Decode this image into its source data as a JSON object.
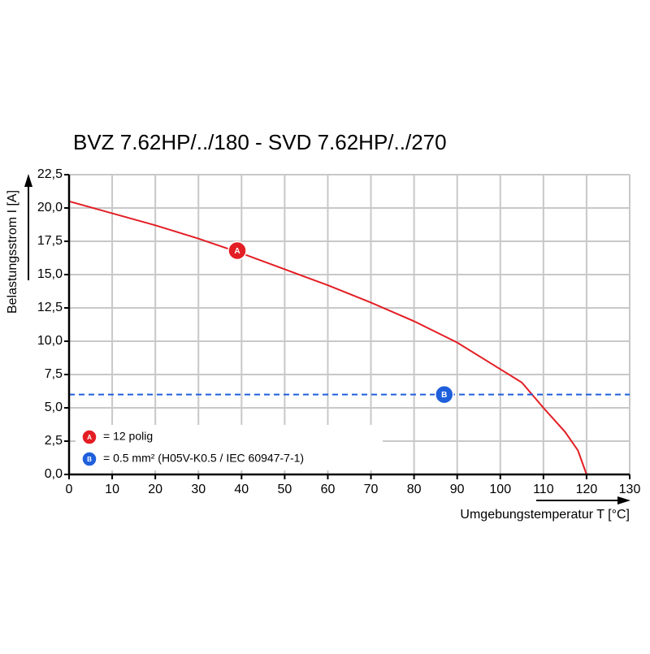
{
  "chart_data": {
    "type": "line",
    "title": "BVZ 7.62HP/../180 - SVD 7.62HP/../270",
    "x_label": "Umgebungstemperatur T [°C]",
    "y_label": "Belastungsstrom I [A]",
    "xlim": [
      0,
      130
    ],
    "ylim": [
      0,
      22.5
    ],
    "xticks": [
      0,
      10,
      20,
      30,
      40,
      50,
      60,
      70,
      80,
      90,
      100,
      110,
      120,
      130
    ],
    "yticks": [
      {
        "value": 0,
        "label": "0,0"
      },
      {
        "value": 2.5,
        "label": "2,5"
      },
      {
        "value": 5,
        "label": "5,0"
      },
      {
        "value": 7.5,
        "label": "7,5"
      },
      {
        "value": 10,
        "label": "10,0"
      },
      {
        "value": 12.5,
        "label": "12,5"
      },
      {
        "value": 15,
        "label": "15,0"
      },
      {
        "value": 17.5,
        "label": "17,5"
      },
      {
        "value": 20,
        "label": "20,0"
      },
      {
        "value": 22.5,
        "label": "22,5"
      }
    ],
    "grid": true,
    "series": [
      {
        "name": "= 12 polig",
        "marker_label": "A",
        "color": "#e31e24",
        "dashed": false,
        "x": [
          0,
          10,
          20,
          30,
          40,
          50,
          60,
          70,
          80,
          90,
          100,
          105,
          110,
          115,
          118,
          120
        ],
        "values": [
          20.5,
          19.6,
          18.7,
          17.7,
          16.6,
          15.4,
          14.2,
          12.9,
          11.5,
          9.9,
          7.9,
          6.9,
          5.0,
          3.2,
          1.8,
          0
        ]
      },
      {
        "name": "= 0.5 mm² (H05V-K0.5 / IEC 60947-7-1)",
        "marker_label": "B",
        "color": "#1f5fdc",
        "dashed": true,
        "x": [
          0,
          130
        ],
        "values": [
          6,
          6
        ]
      }
    ],
    "annotations": [
      {
        "series": 0,
        "x": 39,
        "y": 16.8
      },
      {
        "series": 1,
        "x": 87,
        "y": 6
      }
    ]
  }
}
